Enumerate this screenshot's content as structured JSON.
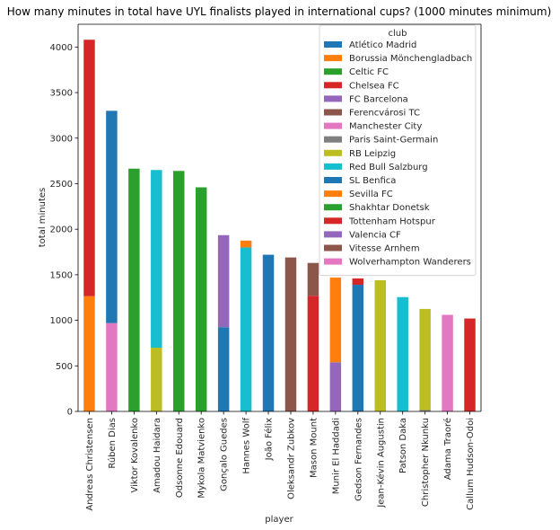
{
  "chart_data": {
    "type": "bar",
    "stacked": true,
    "title": "How many minutes in total have UYL finalists played in international cups? (1000 minutes minimum)",
    "xlabel": "player",
    "ylabel": "total minutes",
    "ylim": [
      0,
      4250
    ],
    "yticks": [
      0,
      500,
      1000,
      1500,
      2000,
      2500,
      3000,
      3500,
      4000
    ],
    "grid": false,
    "legend_title": "club",
    "legend_position": "upper right",
    "categories": [
      "Andreas Christensen",
      "Rúben Dias",
      "Viktor Kovalenko",
      "Amadou Haidara",
      "Odsonne Edouard",
      "Mykola Matvienko",
      "Gonçalo Guedes",
      "Hannes Wolf",
      "João Félix",
      "Oleksandr Zubkov",
      "Mason Mount",
      "Munir El Haddadi",
      "Gedson Fernandes",
      "Jean-Kévin Augustin",
      "Patson Daka",
      "Christopher Nkunku",
      "Adama Traoré",
      "Callum Hudson-Odoi"
    ],
    "series": [
      {
        "name": "Atlético Madrid",
        "color": "#1f77b4",
        "values": [
          0,
          0,
          0,
          0,
          0,
          0,
          0,
          0,
          1720,
          0,
          0,
          0,
          0,
          0,
          0,
          0,
          0,
          0
        ]
      },
      {
        "name": "Borussia Mönchengladbach",
        "color": "#ff7f0e",
        "values": [
          1265,
          0,
          0,
          0,
          0,
          0,
          0,
          0,
          0,
          0,
          0,
          0,
          0,
          0,
          0,
          0,
          0,
          0
        ]
      },
      {
        "name": "Celtic FC",
        "color": "#2ca02c",
        "values": [
          0,
          0,
          0,
          0,
          2640,
          0,
          0,
          0,
          0,
          0,
          0,
          0,
          0,
          0,
          0,
          0,
          0,
          0
        ]
      },
      {
        "name": "Chelsea FC",
        "color": "#d62728",
        "values": [
          2815,
          0,
          0,
          0,
          0,
          0,
          0,
          0,
          0,
          0,
          1270,
          0,
          0,
          0,
          0,
          0,
          0,
          1020
        ]
      },
      {
        "name": "FC Barcelona",
        "color": "#9467bd",
        "values": [
          0,
          0,
          0,
          0,
          0,
          0,
          0,
          0,
          0,
          0,
          0,
          540,
          0,
          0,
          0,
          0,
          0,
          0
        ]
      },
      {
        "name": "Ferencvárosi TC",
        "color": "#8c564b",
        "values": [
          0,
          0,
          0,
          0,
          0,
          0,
          0,
          0,
          0,
          1690,
          0,
          0,
          0,
          0,
          0,
          0,
          0,
          0
        ]
      },
      {
        "name": "Manchester City",
        "color": "#e377c2",
        "values": [
          0,
          970,
          0,
          0,
          0,
          0,
          0,
          0,
          0,
          0,
          0,
          0,
          0,
          0,
          0,
          0,
          1060,
          0
        ]
      },
      {
        "name": "Paris Saint-Germain",
        "color": "#7f7f7f",
        "values": [
          0,
          0,
          0,
          0,
          0,
          0,
          0,
          0,
          0,
          0,
          0,
          0,
          0,
          0,
          0,
          15,
          0,
          0
        ]
      },
      {
        "name": "RB Leipzig",
        "color": "#bcbd22",
        "values": [
          0,
          0,
          0,
          700,
          0,
          0,
          0,
          0,
          0,
          0,
          0,
          0,
          0,
          1440,
          0,
          1110,
          0,
          0
        ]
      },
      {
        "name": "Red Bull Salzburg",
        "color": "#17becf",
        "values": [
          0,
          0,
          0,
          1950,
          0,
          0,
          0,
          1800,
          0,
          0,
          0,
          0,
          0,
          0,
          1255,
          0,
          0,
          0
        ]
      },
      {
        "name": "SL Benfica",
        "color": "#1f77b4",
        "values": [
          0,
          2330,
          0,
          0,
          0,
          0,
          925,
          0,
          0,
          0,
          0,
          0,
          1390,
          0,
          0,
          0,
          0,
          0
        ]
      },
      {
        "name": "Sevilla FC",
        "color": "#ff7f0e",
        "values": [
          0,
          0,
          0,
          0,
          0,
          0,
          0,
          75,
          0,
          0,
          0,
          930,
          0,
          0,
          0,
          0,
          0,
          0
        ]
      },
      {
        "name": "Shakhtar Donetsk",
        "color": "#2ca02c",
        "values": [
          0,
          0,
          2665,
          0,
          0,
          2460,
          0,
          0,
          0,
          0,
          0,
          0,
          0,
          0,
          0,
          0,
          0,
          0
        ]
      },
      {
        "name": "Tottenham Hotspur",
        "color": "#d62728",
        "values": [
          0,
          0,
          0,
          0,
          0,
          0,
          0,
          0,
          0,
          0,
          0,
          0,
          70,
          0,
          0,
          0,
          0,
          0
        ]
      },
      {
        "name": "Valencia CF",
        "color": "#9467bd",
        "values": [
          0,
          0,
          0,
          0,
          0,
          0,
          1010,
          0,
          0,
          0,
          0,
          0,
          0,
          0,
          0,
          0,
          0,
          0
        ]
      },
      {
        "name": "Vitesse Arnhem",
        "color": "#8c564b",
        "values": [
          0,
          0,
          0,
          0,
          0,
          0,
          0,
          0,
          0,
          0,
          360,
          0,
          0,
          0,
          0,
          0,
          0,
          0
        ]
      },
      {
        "name": "Wolverhampton Wanderers",
        "color": "#e377c2",
        "values": [
          0,
          0,
          0,
          0,
          0,
          0,
          0,
          0,
          0,
          0,
          0,
          0,
          0,
          0,
          0,
          0,
          0,
          0
        ]
      }
    ]
  }
}
